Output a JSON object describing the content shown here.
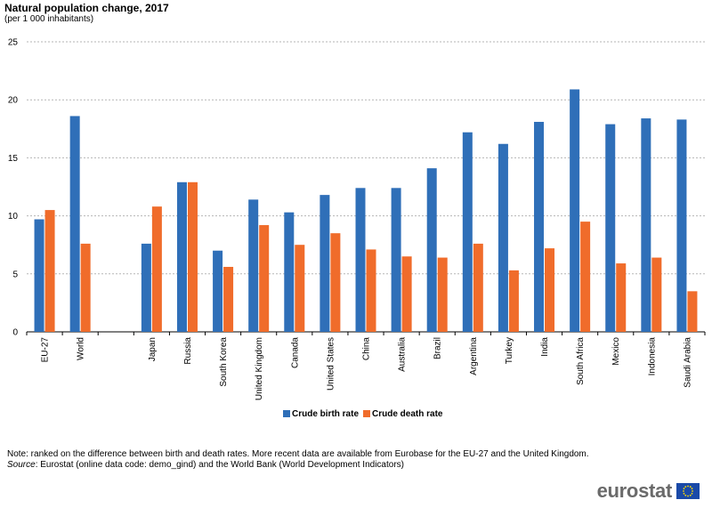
{
  "header": {
    "title": "Natural population change, 2017",
    "subtitle": "(per 1 000 inhabitants)"
  },
  "chart_data": {
    "type": "bar",
    "title": "Natural population change, 2017",
    "subtitle": "(per 1 000 inhabitants)",
    "xlabel": "",
    "ylabel": "",
    "ylim": [
      0,
      25
    ],
    "yticks": [
      0,
      5,
      10,
      15,
      20,
      25
    ],
    "grid": true,
    "legend_position": "bottom-center",
    "categories": [
      "EU-27",
      "World",
      "",
      "Japan",
      "Russia",
      "South Korea",
      "United Kingdom",
      "Canada",
      "United States",
      "China",
      "Australia",
      "Brazil",
      "Argentina",
      "Turkey",
      "India",
      "South Africa",
      "Mexico",
      "Indonesia",
      "Saudi Arabia"
    ],
    "series": [
      {
        "name": "Crude birth rate",
        "color": "#2f6fb8",
        "values": [
          9.7,
          18.6,
          null,
          7.6,
          12.9,
          7.0,
          11.4,
          10.3,
          11.8,
          12.4,
          12.4,
          14.1,
          17.2,
          16.2,
          18.1,
          20.9,
          17.9,
          18.4,
          18.3
        ]
      },
      {
        "name": "Crude death rate",
        "color": "#f06c2b",
        "values": [
          10.5,
          7.6,
          null,
          10.8,
          12.9,
          5.6,
          9.2,
          7.5,
          8.5,
          7.1,
          6.5,
          6.4,
          7.6,
          5.3,
          7.2,
          9.5,
          5.9,
          6.4,
          3.5
        ]
      }
    ]
  },
  "footer": {
    "note": "Note: ranked on the difference between birth and death rates. More recent data are available from Eurobase for the EU-27 and the United Kingdom.",
    "source_label": "Source",
    "source_text": ":  Eurostat (online data code: demo_gind) and the World Bank (World Development Indicators)",
    "logo_text": "eurostat"
  }
}
